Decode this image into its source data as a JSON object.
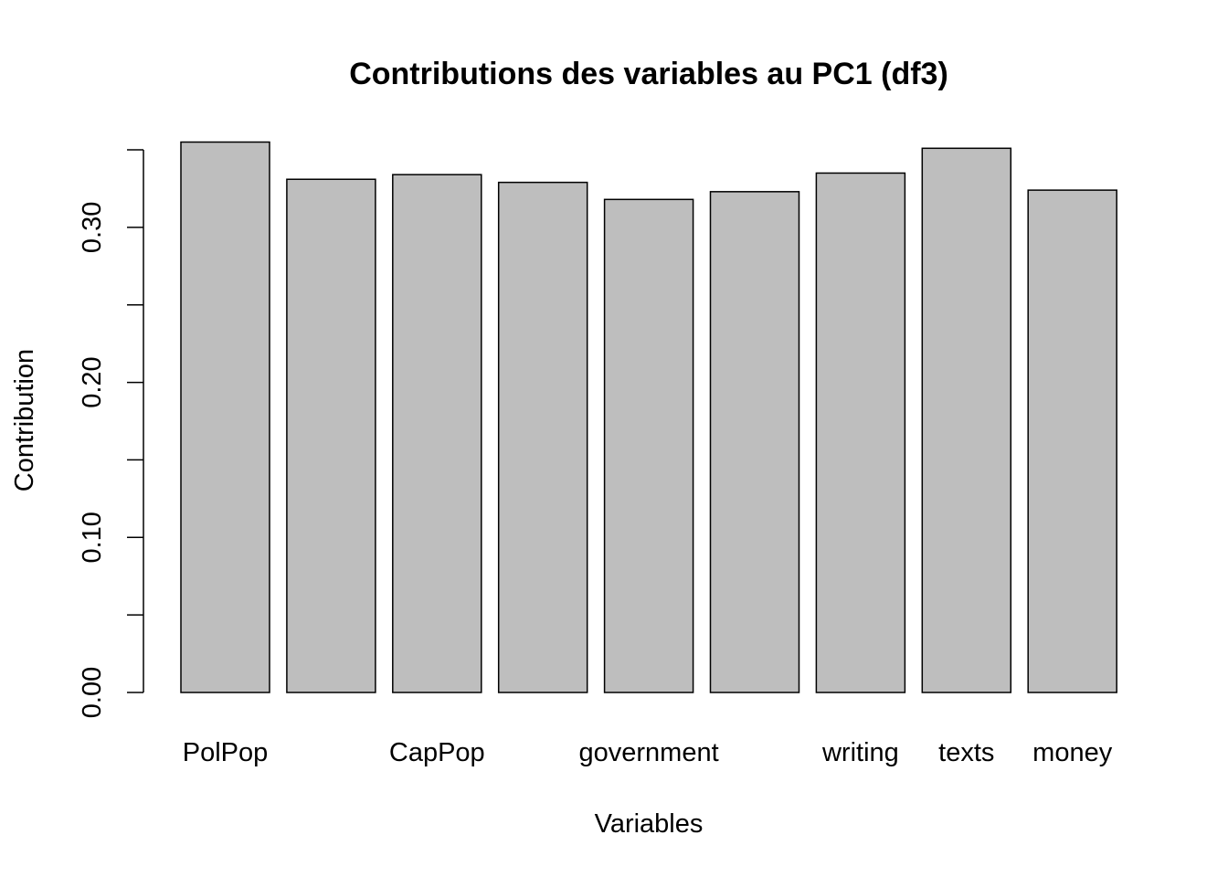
{
  "chart_data": {
    "type": "bar",
    "title": "Contributions des variables au PC1 (df3)",
    "xlabel": "Variables",
    "ylabel": "Contribution",
    "categories": [
      "PolPop",
      "",
      "CapPop",
      "",
      "government",
      "",
      "writing",
      "texts",
      "money"
    ],
    "values": [
      0.355,
      0.331,
      0.334,
      0.329,
      0.318,
      0.323,
      0.335,
      0.351,
      0.324
    ],
    "ylim": [
      0,
      0.35
    ],
    "yticks": [
      0.0,
      0.05,
      0.1,
      0.15,
      0.2,
      0.25,
      0.3,
      0.35
    ],
    "ytick_labels": [
      "0.00",
      "",
      "0.10",
      "",
      "0.20",
      "",
      "0.30",
      ""
    ],
    "grid": false,
    "bar_color": "#bebebe",
    "bar_stroke": "#000000"
  }
}
